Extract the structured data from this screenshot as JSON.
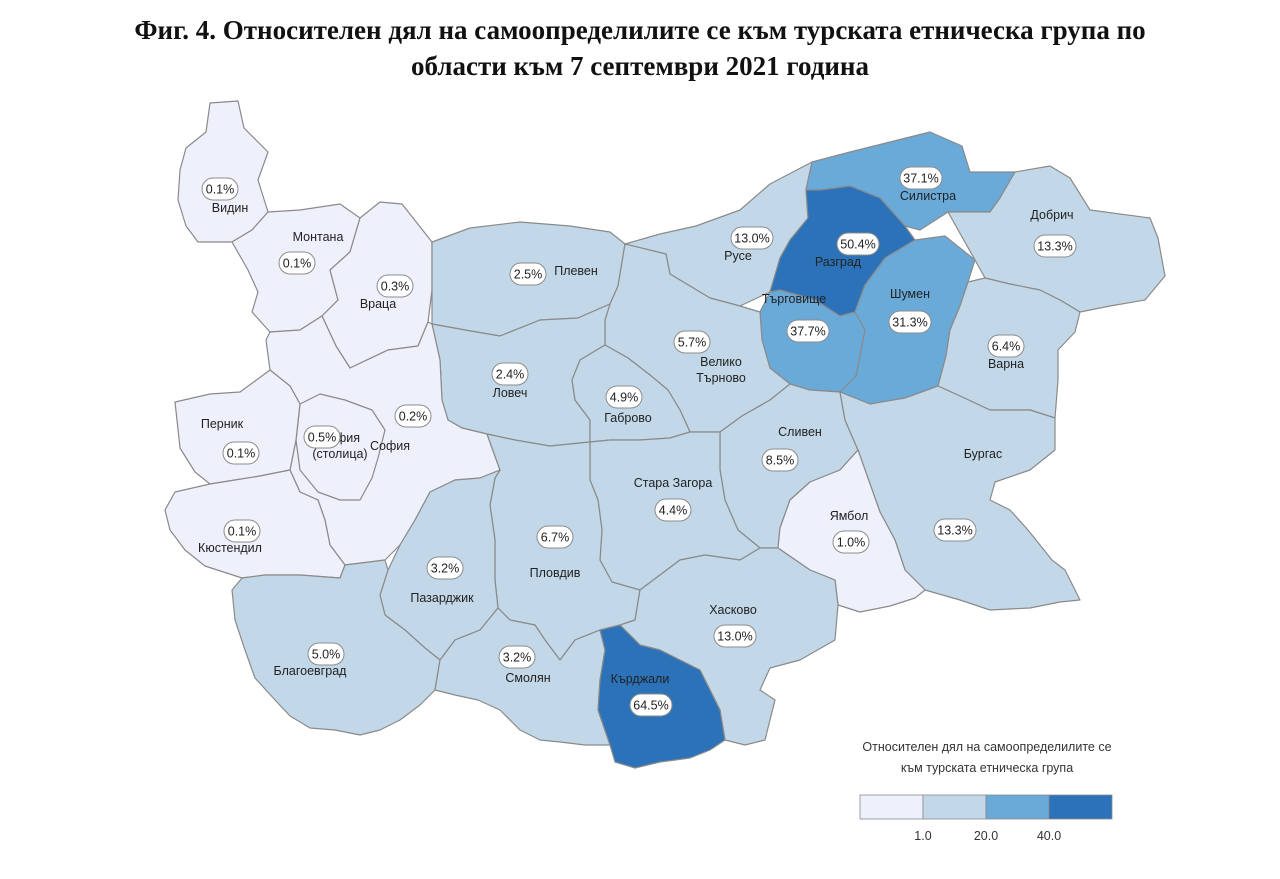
{
  "title": {
    "line1": "Фиг. 4. Относителен дял на самоопределилите се към турската етническа група по",
    "line2": "области към 7 септември 2021 година"
  },
  "colors": {
    "class1": "#eef0fc",
    "class2": "#c2d8e8",
    "class3": "#6aaad8",
    "class4": "#2c72b8",
    "border": "#8a8a8a"
  },
  "regions": [
    {
      "id": "vidin",
      "name": "Видин",
      "value": "0.1%",
      "class": 1
    },
    {
      "id": "montana",
      "name": "Монтана",
      "value": "0.1%",
      "class": 1
    },
    {
      "id": "vratsa",
      "name": "Враца",
      "value": "0.3%",
      "class": 1
    },
    {
      "id": "pleven",
      "name": "Плевен",
      "value": "2.5%",
      "class": 2
    },
    {
      "id": "ruse",
      "name": "Русе",
      "value": "13.0%",
      "class": 2
    },
    {
      "id": "silistra",
      "name": "Силистра",
      "value": "37.1%",
      "class": 3
    },
    {
      "id": "dobrich",
      "name": "Добрич",
      "value": "13.3%",
      "class": 2
    },
    {
      "id": "razgrad",
      "name": "Разград",
      "value": "50.4%",
      "class": 4
    },
    {
      "id": "targovishte",
      "name": "Търговище",
      "value": "37.7%",
      "class": 3
    },
    {
      "id": "shumen",
      "name": "Шумен",
      "value": "31.3%",
      "class": 3
    },
    {
      "id": "varna",
      "name": "Варна",
      "value": "6.4%",
      "class": 2
    },
    {
      "id": "veliko-tarnovo",
      "name": "Велико\nТърново",
      "value": "5.7%",
      "class": 2
    },
    {
      "id": "lovech",
      "name": "Ловеч",
      "value": "2.4%",
      "class": 2
    },
    {
      "id": "gabrovo",
      "name": "Габрово",
      "value": "4.9%",
      "class": 2
    },
    {
      "id": "sofia-oblast",
      "name": "София",
      "value": "0.2%",
      "class": 1
    },
    {
      "id": "sofia-city",
      "name": "София\n(столица)",
      "value": "0.5%",
      "class": 1
    },
    {
      "id": "pernik",
      "name": "Перник",
      "value": "0.1%",
      "class": 1
    },
    {
      "id": "kyustendil",
      "name": "Кюстендил",
      "value": "0.1%",
      "class": 1
    },
    {
      "id": "sliven",
      "name": "Сливен",
      "value": "8.5%",
      "class": 2
    },
    {
      "id": "stara-zagora",
      "name": "Стара Загора",
      "value": "4.4%",
      "class": 2
    },
    {
      "id": "burgas",
      "name": "Бургас",
      "value": "13.3%",
      "class": 2
    },
    {
      "id": "yambol",
      "name": "Ямбол",
      "value": "1.0%",
      "class": 1
    },
    {
      "id": "plovdiv",
      "name": "Пловдив",
      "value": "6.7%",
      "class": 2
    },
    {
      "id": "pazardzhik",
      "name": "Пазарджик",
      "value": "3.2%",
      "class": 2
    },
    {
      "id": "blagoevgrad",
      "name": "Благоевград",
      "value": "5.0%",
      "class": 2
    },
    {
      "id": "smolyan",
      "name": "Смолян",
      "value": "3.2%",
      "class": 2
    },
    {
      "id": "haskovo",
      "name": "Хасково",
      "value": "13.0%",
      "class": 2
    },
    {
      "id": "kardzhali",
      "name": "Кърджали",
      "value": "64.5%",
      "class": 4
    }
  ],
  "legend": {
    "title_line1": "Относителен дял на самоопределилите се",
    "title_line2": "към турската етническа група",
    "ticks": [
      "1.0",
      "20.0",
      "40.0"
    ]
  }
}
